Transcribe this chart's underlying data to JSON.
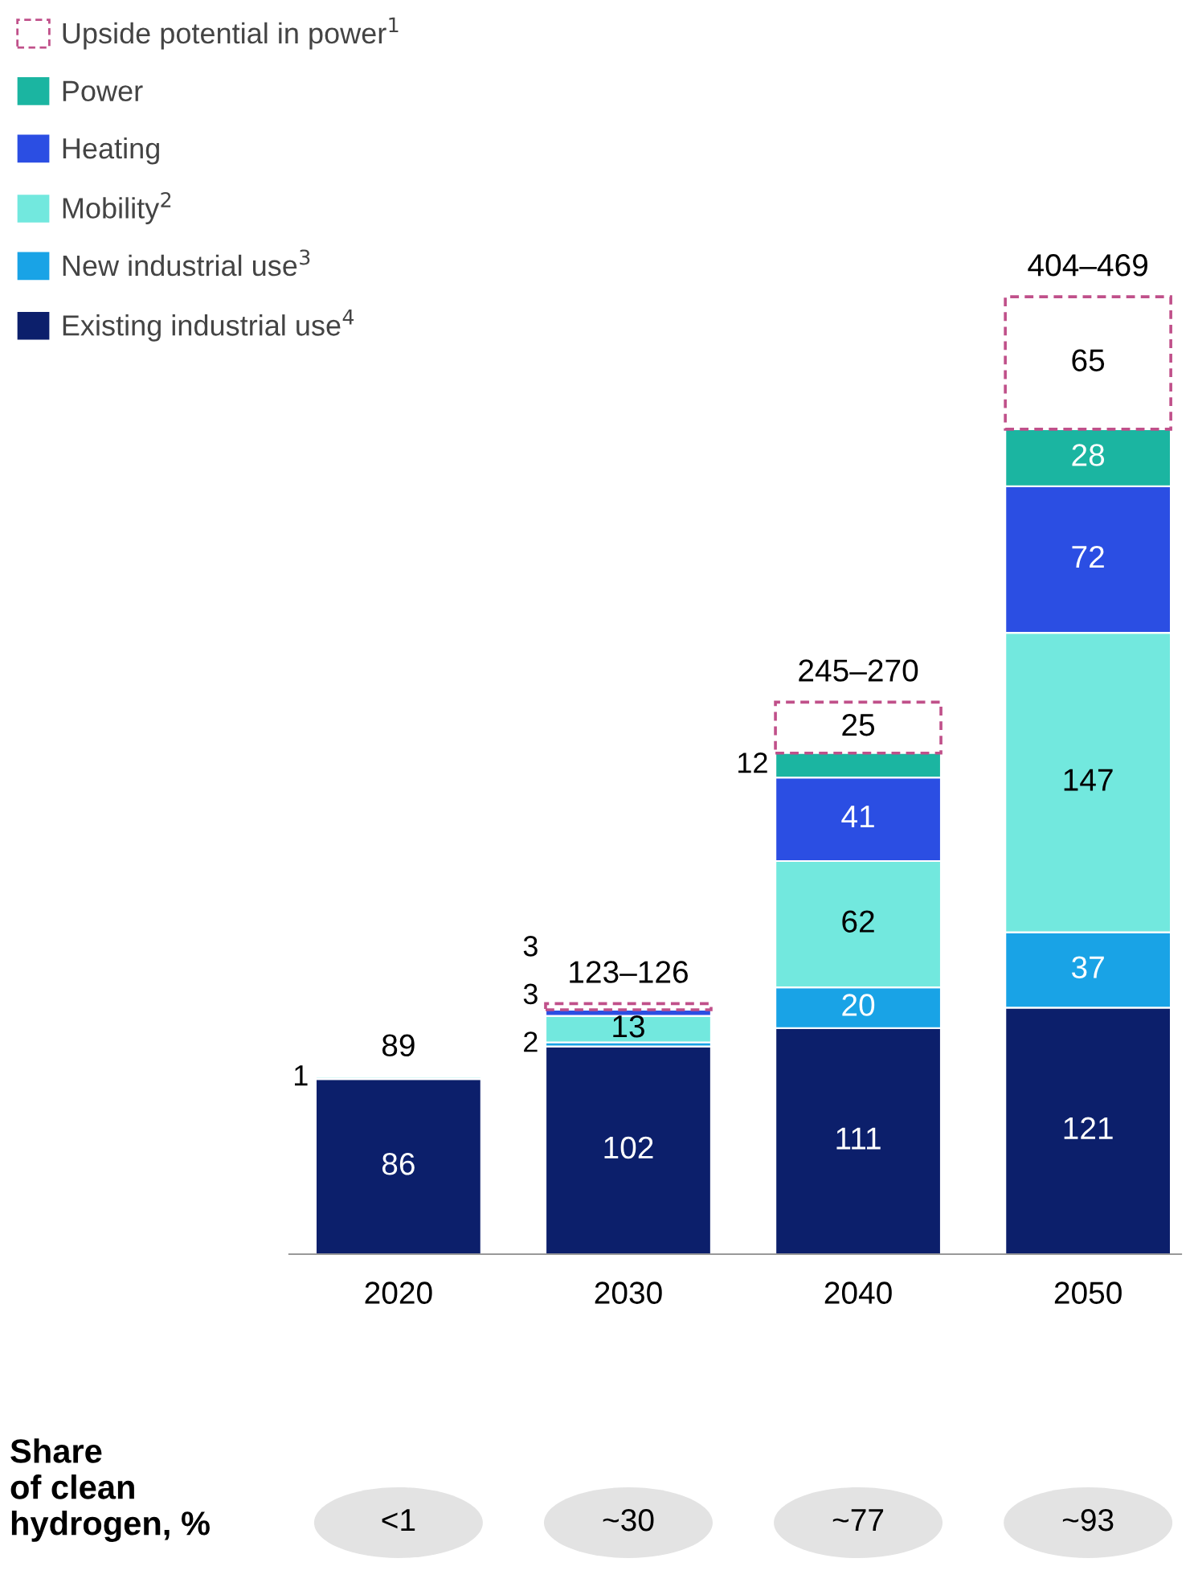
{
  "chart_data": {
    "type": "bar",
    "stacked": true,
    "categories": [
      "2020",
      "2030",
      "2040",
      "2050"
    ],
    "series": [
      {
        "name": "Existing industrial use$^{4}$",
        "color": "#0c1f6b",
        "values": [
          86,
          102,
          111,
          121
        ]
      },
      {
        "name": "New industrial use$^{3}$",
        "color": "#19a3e6",
        "values": [
          null,
          2,
          20,
          37
        ]
      },
      {
        "name": "Mobility$^{2}$",
        "color": "#72e8de",
        "values": [
          1,
          13,
          62,
          147
        ]
      },
      {
        "name": "Heating",
        "color": "#2b4ee3",
        "values": [
          null,
          3,
          41,
          72
        ]
      },
      {
        "name": "Power",
        "color": "#1bb5a1",
        "values": [
          null,
          null,
          12,
          28
        ]
      },
      {
        "name": "Upside potential in power$^{1}$",
        "color": "#c0508a",
        "line_style": "dashed",
        "values": [
          null,
          3,
          25,
          65
        ]
      }
    ],
    "data_labels": true,
    "totals": [
      "89",
      "123–126",
      "245–270",
      "404–469"
    ],
    "legend": "top left",
    "tick_labels": "x",
    "annotations": [
      "Share\nof clean\nhydrogen, %",
      "<1",
      "~30",
      "~77",
      "~93"
    ]
  }
}
